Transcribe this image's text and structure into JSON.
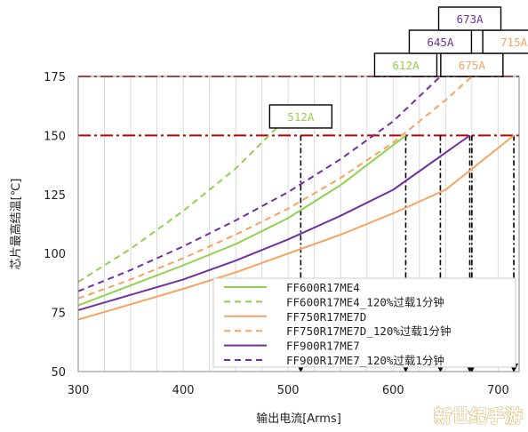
{
  "chart_data": {
    "type": "line",
    "xlabel": "输出电流[Arms]",
    "ylabel": "芯片最高结温[℃]",
    "xlim": [
      300,
      720
    ],
    "ylim": [
      50,
      175
    ],
    "x_ticks": [
      "300",
      "400",
      "500",
      "600",
      "700"
    ],
    "y_ticks": [
      "50",
      "75",
      "100",
      "125",
      "150",
      "175"
    ],
    "grid": "vertical",
    "legend_position": "bottom-right",
    "series": [
      {
        "name": "FF600R17ME4",
        "color": "#92d050",
        "dash": false,
        "x": [
          300,
          350,
          400,
          450,
          500,
          550,
          612
        ],
        "y": [
          78,
          86.5,
          95,
          104,
          115,
          129,
          150
        ]
      },
      {
        "name": "FF600R17ME4_120%过载1分钟",
        "color": "#92d050",
        "dash": true,
        "x": [
          300,
          350,
          400,
          450,
          500,
          512
        ],
        "y": [
          88,
          102,
          118,
          136,
          158,
          164
        ]
      },
      {
        "name": "FF750R17ME7D",
        "color": "#f4a460",
        "dash": false,
        "x": [
          300,
          350,
          400,
          450,
          500,
          550,
          600,
          650,
          715
        ],
        "y": [
          72,
          78.5,
          85,
          92,
          100,
          108,
          117,
          127,
          150
        ]
      },
      {
        "name": "FF750R17ME7D_120%过载1分钟",
        "color": "#f4a460",
        "dash": true,
        "x": [
          300,
          350,
          400,
          450,
          500,
          550,
          600,
          650,
          675
        ],
        "y": [
          81,
          89,
          98,
          108,
          119,
          132,
          147,
          165,
          175
        ]
      },
      {
        "name": "FF900R17ME7",
        "color": "#7030a0",
        "dash": false,
        "x": [
          300,
          350,
          400,
          450,
          500,
          550,
          600,
          673
        ],
        "y": [
          76,
          82.5,
          89,
          97,
          106,
          116,
          127,
          150
        ]
      },
      {
        "name": "FF900R17ME7_120%过载1分钟",
        "color": "#7030a0",
        "dash": true,
        "x": [
          300,
          350,
          400,
          450,
          500,
          550,
          600,
          645
        ],
        "y": [
          84,
          93,
          103,
          114,
          126,
          140,
          156,
          175
        ]
      }
    ],
    "reference_lines": [
      {
        "y": 150,
        "color": "#c00000"
      },
      {
        "y": 175,
        "color": "#c00000"
      }
    ],
    "drop_lines_x": [
      512,
      612,
      645,
      673,
      675,
      715
    ],
    "annotations": [
      {
        "text": "512A",
        "x": 512,
        "row": 0,
        "color": "#92d050"
      },
      {
        "text": "612A",
        "x": 612,
        "row": 1,
        "color": "#92d050"
      },
      {
        "text": "675A",
        "x": 675,
        "row": 1,
        "color": "#f4a460"
      },
      {
        "text": "645A",
        "x": 645,
        "row": 2,
        "color": "#7030a0"
      },
      {
        "text": "715A",
        "x": 715,
        "row": 2,
        "color": "#f4a460"
      },
      {
        "text": "673A",
        "x": 673,
        "row": 3,
        "color": "#7030a0"
      }
    ]
  },
  "watermark": "新世纪手游"
}
